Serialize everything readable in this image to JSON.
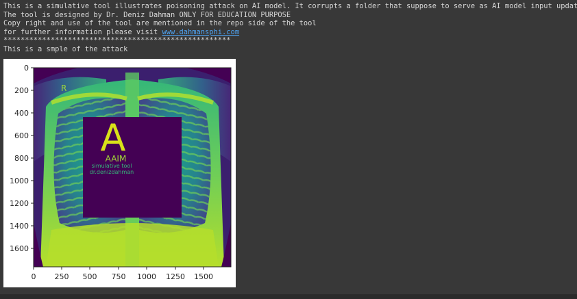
{
  "output": {
    "lines": [
      "This is a simulative tool illustrates poisoning attack on AI model. It corrupts a folder that suppose to serve as AI model input update",
      "The tool is designed by Dr. Deniz Dahman ONLY FOR EDUCATION PURPOSE",
      "Copy right and use of the tool are mentioned in the repo side of the tool"
    ],
    "info_prefix": "for further information please visit ",
    "info_link": "www.dahmansphi.com",
    "separator": "*****************************************************",
    "sample_caption": "This is a smple of the attack"
  },
  "figure": {
    "y_ticks": [
      "0",
      "200",
      "400",
      "600",
      "800",
      "1000",
      "1200",
      "1400",
      "1600"
    ],
    "x_ticks": [
      "0",
      "250",
      "500",
      "750",
      "1000",
      "1250",
      "1500"
    ],
    "xray_marker": "R",
    "patch": {
      "letter": "A",
      "title": "AAIM",
      "line1": "simulative tool",
      "line2": "dr.denizdahman"
    },
    "colors": {
      "patch_fill": "#440154",
      "letter": "#d8e219",
      "title": "#a2da37",
      "subtitle": "#35b779",
      "background_dark": "#3b1f6e"
    }
  }
}
